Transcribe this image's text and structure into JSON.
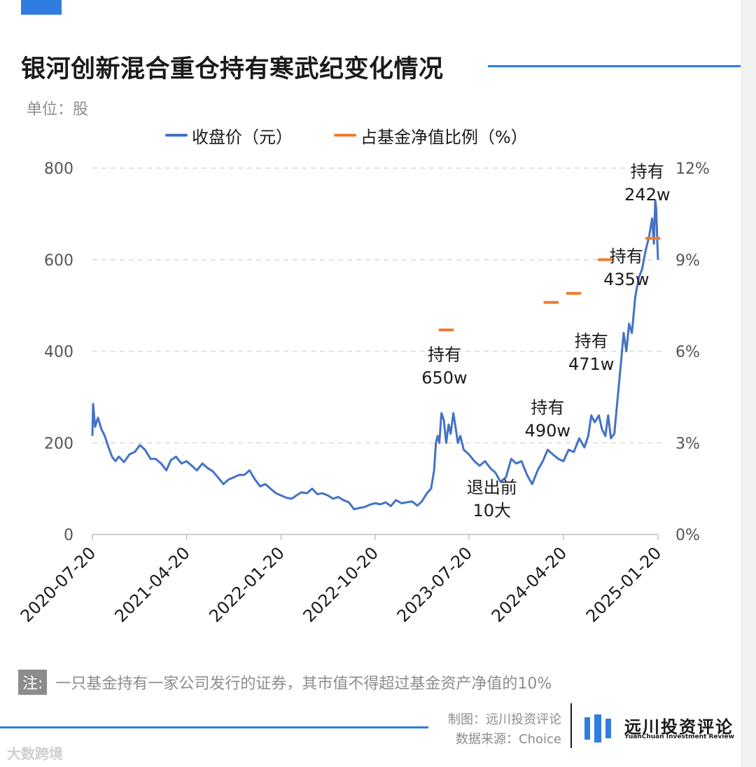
{
  "header": {
    "title": "银河创新混合重仓持有寒武纪变化情况",
    "unit": "单位：股"
  },
  "legend": {
    "price_label": "收盘价（元）",
    "pct_label": "占基金净值比例（%）"
  },
  "colors": {
    "accent": "#2f7de1",
    "price_line": "#4472c4",
    "pct_marker": "#ed7d31",
    "grid": "#d9d9d9",
    "muted_text": "#8c8c8c"
  },
  "chart_data": {
    "type": "line",
    "title": "银河创新混合重仓持有寒武纪变化情况",
    "x_ticks": [
      "2020-07-20",
      "2021-04-20",
      "2022-01-20",
      "2022-10-20",
      "2023-07-20",
      "2024-04-20",
      "2025-01-20"
    ],
    "y_left": {
      "label": "收盘价（元）",
      "ticks": [
        "0",
        "200",
        "400",
        "600",
        "800"
      ],
      "range": [
        0,
        800
      ]
    },
    "y_right": {
      "label": "占基金净值比例（%）",
      "ticks": [
        "0%",
        "3%",
        "6%",
        "9%",
        "12%"
      ],
      "range": [
        0,
        12
      ]
    },
    "grid": "horizontal dashed",
    "series": [
      {
        "name": "收盘价（元）",
        "kind": "line",
        "axis": "left",
        "points": [
          [
            "2020-07-20",
            215
          ],
          [
            "2020-07-22",
            285
          ],
          [
            "2020-07-28",
            235
          ],
          [
            "2020-08-05",
            255
          ],
          [
            "2020-08-15",
            230
          ],
          [
            "2020-08-25",
            215
          ],
          [
            "2020-09-05",
            190
          ],
          [
            "2020-09-15",
            170
          ],
          [
            "2020-09-25",
            160
          ],
          [
            "2020-10-05",
            170
          ],
          [
            "2020-10-20",
            158
          ],
          [
            "2020-11-05",
            175
          ],
          [
            "2020-11-20",
            180
          ],
          [
            "2020-12-05",
            195
          ],
          [
            "2020-12-20",
            185
          ],
          [
            "2021-01-05",
            165
          ],
          [
            "2021-01-20",
            165
          ],
          [
            "2021-02-05",
            155
          ],
          [
            "2021-02-20",
            140
          ],
          [
            "2021-03-05",
            162
          ],
          [
            "2021-03-20",
            170
          ],
          [
            "2021-04-05",
            155
          ],
          [
            "2021-04-20",
            160
          ],
          [
            "2021-05-05",
            150
          ],
          [
            "2021-05-20",
            140
          ],
          [
            "2021-06-05",
            155
          ],
          [
            "2021-06-20",
            145
          ],
          [
            "2021-07-05",
            138
          ],
          [
            "2021-07-20",
            125
          ],
          [
            "2021-08-05",
            110
          ],
          [
            "2021-08-20",
            120
          ],
          [
            "2021-09-05",
            125
          ],
          [
            "2021-09-20",
            130
          ],
          [
            "2021-10-05",
            130
          ],
          [
            "2021-10-20",
            140
          ],
          [
            "2021-11-05",
            120
          ],
          [
            "2021-11-20",
            105
          ],
          [
            "2021-12-05",
            110
          ],
          [
            "2021-12-20",
            100
          ],
          [
            "2022-01-05",
            90
          ],
          [
            "2022-01-20",
            85
          ],
          [
            "2022-02-05",
            80
          ],
          [
            "2022-02-20",
            78
          ],
          [
            "2022-03-05",
            85
          ],
          [
            "2022-03-20",
            92
          ],
          [
            "2022-04-05",
            90
          ],
          [
            "2022-04-20",
            100
          ],
          [
            "2022-05-05",
            88
          ],
          [
            "2022-05-20",
            90
          ],
          [
            "2022-06-05",
            85
          ],
          [
            "2022-06-20",
            78
          ],
          [
            "2022-07-05",
            82
          ],
          [
            "2022-07-20",
            75
          ],
          [
            "2022-08-05",
            70
          ],
          [
            "2022-08-20",
            55
          ],
          [
            "2022-09-05",
            58
          ],
          [
            "2022-09-20",
            60
          ],
          [
            "2022-10-05",
            65
          ],
          [
            "2022-10-20",
            68
          ],
          [
            "2022-11-05",
            66
          ],
          [
            "2022-11-20",
            70
          ],
          [
            "2022-12-05",
            62
          ],
          [
            "2022-12-20",
            75
          ],
          [
            "2023-01-05",
            68
          ],
          [
            "2023-01-20",
            70
          ],
          [
            "2023-02-05",
            72
          ],
          [
            "2023-02-20",
            63
          ],
          [
            "2023-03-05",
            72
          ],
          [
            "2023-03-20",
            90
          ],
          [
            "2023-04-01",
            100
          ],
          [
            "2023-04-10",
            140
          ],
          [
            "2023-04-15",
            200
          ],
          [
            "2023-04-20",
            215
          ],
          [
            "2023-04-25",
            200
          ],
          [
            "2023-05-01",
            265
          ],
          [
            "2023-05-08",
            250
          ],
          [
            "2023-05-15",
            200
          ],
          [
            "2023-05-22",
            240
          ],
          [
            "2023-05-28",
            220
          ],
          [
            "2023-06-05",
            265
          ],
          [
            "2023-06-12",
            230
          ],
          [
            "2023-06-18",
            200
          ],
          [
            "2023-06-25",
            215
          ],
          [
            "2023-07-05",
            185
          ],
          [
            "2023-07-20",
            175
          ],
          [
            "2023-08-05",
            160
          ],
          [
            "2023-08-20",
            150
          ],
          [
            "2023-09-05",
            160
          ],
          [
            "2023-09-20",
            145
          ],
          [
            "2023-10-05",
            135
          ],
          [
            "2023-10-20",
            115
          ],
          [
            "2023-11-05",
            125
          ],
          [
            "2023-11-20",
            165
          ],
          [
            "2023-12-05",
            155
          ],
          [
            "2023-12-20",
            160
          ],
          [
            "2024-01-05",
            130
          ],
          [
            "2024-01-20",
            110
          ],
          [
            "2024-02-05",
            140
          ],
          [
            "2024-02-20",
            160
          ],
          [
            "2024-03-05",
            185
          ],
          [
            "2024-03-20",
            175
          ],
          [
            "2024-04-05",
            165
          ],
          [
            "2024-04-20",
            160
          ],
          [
            "2024-05-05",
            185
          ],
          [
            "2024-05-20",
            180
          ],
          [
            "2024-06-05",
            210
          ],
          [
            "2024-06-20",
            190
          ],
          [
            "2024-07-01",
            215
          ],
          [
            "2024-07-10",
            260
          ],
          [
            "2024-07-20",
            245
          ],
          [
            "2024-08-01",
            260
          ],
          [
            "2024-08-10",
            230
          ],
          [
            "2024-08-20",
            215
          ],
          [
            "2024-08-28",
            260
          ],
          [
            "2024-09-05",
            210
          ],
          [
            "2024-09-15",
            220
          ],
          [
            "2024-09-25",
            300
          ],
          [
            "2024-10-05",
            380
          ],
          [
            "2024-10-12",
            440
          ],
          [
            "2024-10-20",
            400
          ],
          [
            "2024-10-28",
            460
          ],
          [
            "2024-11-05",
            440
          ],
          [
            "2024-11-15",
            520
          ],
          [
            "2024-11-25",
            560
          ],
          [
            "2024-12-05",
            580
          ],
          [
            "2024-12-15",
            620
          ],
          [
            "2024-12-25",
            650
          ],
          [
            "2025-01-03",
            690
          ],
          [
            "2025-01-08",
            635
          ],
          [
            "2025-01-12",
            730
          ],
          [
            "2025-01-15",
            710
          ],
          [
            "2025-01-18",
            640
          ],
          [
            "2025-01-20",
            600
          ]
        ]
      },
      {
        "name": "占基金净值比例（%）",
        "kind": "markers",
        "axis": "right",
        "points": [
          [
            "2023-05-15",
            6.7
          ],
          [
            "2024-03-15",
            7.6
          ],
          [
            "2024-05-20",
            7.9
          ],
          [
            "2024-08-20",
            9.0
          ],
          [
            "2025-01-05",
            9.7
          ]
        ]
      }
    ],
    "annotations": [
      {
        "line1": "持有",
        "line2": "650w",
        "date": "2023-05-10",
        "value": 380
      },
      {
        "line1": "退出前",
        "line2": "10大",
        "date": "2023-09-25",
        "value": 90
      },
      {
        "line1": "持有",
        "line2": "490w",
        "date": "2024-03-05",
        "value": 265
      },
      {
        "line1": "持有",
        "line2": "471w",
        "date": "2024-07-10",
        "value": 410
      },
      {
        "line1": "持有",
        "line2": "435w",
        "date": "2024-10-20",
        "value": 595
      },
      {
        "line1": "持有",
        "line2": "242w",
        "date": "2024-12-20",
        "value": 780
      }
    ]
  },
  "footer": {
    "note_tag": "注:",
    "note_text": "一只基金持有一家公司发行的证券，其市值不得超过基金资产净值的10%",
    "credit_made": "制图：远川投资评论",
    "credit_source": "数据来源：Choice",
    "logo_name": "远川投资评论",
    "logo_sub": "YuanChuan Investment Review",
    "watermark": "大数跨境"
  }
}
